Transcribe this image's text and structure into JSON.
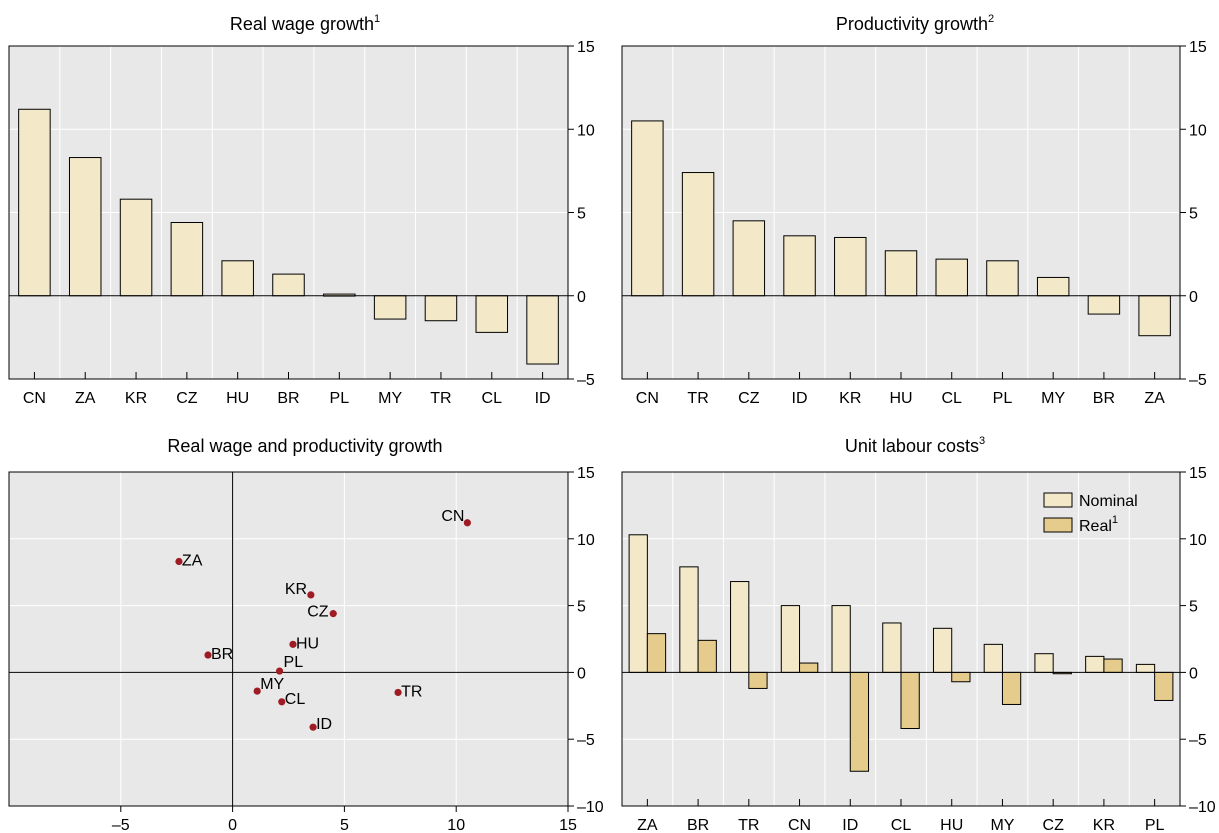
{
  "colors": {
    "panel_bg": "#e8e8e8",
    "grid": "#ffffff",
    "bar_light": "#f3e9c8",
    "bar_dark": "#e5cc8c",
    "bar_stroke": "#000000",
    "dot": "#a01c24"
  },
  "chart_data": [
    {
      "id": "p1",
      "type": "bar",
      "title": "Real wage growth",
      "title_sup": "1",
      "categories": [
        "CN",
        "ZA",
        "KR",
        "CZ",
        "HU",
        "BR",
        "PL",
        "MY",
        "TR",
        "CL",
        "ID"
      ],
      "values": [
        11.2,
        8.3,
        5.8,
        4.4,
        2.1,
        1.3,
        0.1,
        -1.4,
        -1.5,
        -2.2,
        -4.1
      ],
      "ylim": [
        -5,
        15
      ],
      "yticks": [
        "15",
        "10",
        "5",
        "0",
        "–5"
      ],
      "ytick_values": [
        15,
        10,
        5,
        0,
        -5
      ]
    },
    {
      "id": "p2",
      "type": "bar",
      "title": "Productivity growth",
      "title_sup": "2",
      "categories": [
        "CN",
        "TR",
        "CZ",
        "ID",
        "KR",
        "HU",
        "CL",
        "PL",
        "MY",
        "BR",
        "ZA"
      ],
      "values": [
        10.5,
        7.4,
        4.5,
        3.6,
        3.5,
        2.7,
        2.2,
        2.1,
        1.1,
        -1.1,
        -2.4
      ],
      "ylim": [
        -5,
        15
      ],
      "yticks": [
        "15",
        "10",
        "5",
        "0",
        "–5"
      ],
      "ytick_values": [
        15,
        10,
        5,
        0,
        -5
      ]
    },
    {
      "id": "p3",
      "type": "scatter",
      "title": "Real wage and productivity growth",
      "title_sup": "",
      "xlim": [
        -10,
        15
      ],
      "ylim": [
        -10,
        15
      ],
      "xticks": [
        "–5",
        "0",
        "5",
        "10",
        "15"
      ],
      "xtick_values": [
        -5,
        0,
        5,
        10,
        15
      ],
      "yticks": [
        "15",
        "10",
        "5",
        "0",
        "–5",
        "–10"
      ],
      "ytick_values": [
        15,
        10,
        5,
        0,
        -5,
        -10
      ],
      "points": [
        {
          "label": "CN",
          "x": 10.5,
          "y": 11.2
        },
        {
          "label": "ZA",
          "x": -2.4,
          "y": 8.3
        },
        {
          "label": "KR",
          "x": 3.5,
          "y": 5.8
        },
        {
          "label": "CZ",
          "x": 4.5,
          "y": 4.4
        },
        {
          "label": "HU",
          "x": 2.7,
          "y": 2.1
        },
        {
          "label": "BR",
          "x": -1.1,
          "y": 1.3
        },
        {
          "label": "PL",
          "x": 2.1,
          "y": 0.1
        },
        {
          "label": "MY",
          "x": 1.1,
          "y": -1.4
        },
        {
          "label": "CL",
          "x": 2.2,
          "y": -2.2
        },
        {
          "label": "TR",
          "x": 7.4,
          "y": -1.5
        },
        {
          "label": "ID",
          "x": 3.6,
          "y": -4.1
        }
      ]
    },
    {
      "id": "p4",
      "type": "bar",
      "title": "Unit labour costs",
      "title_sup": "3",
      "categories": [
        "ZA",
        "BR",
        "TR",
        "CN",
        "ID",
        "CL",
        "HU",
        "MY",
        "CZ",
        "KR",
        "PL"
      ],
      "series": [
        {
          "name": "Nominal",
          "name_sup": "",
          "values": [
            10.3,
            7.9,
            6.8,
            5.0,
            5.0,
            3.7,
            3.3,
            2.1,
            1.4,
            1.2,
            0.6
          ]
        },
        {
          "name": "Real",
          "name_sup": "1",
          "values": [
            2.9,
            2.4,
            -1.2,
            0.7,
            -7.4,
            -4.2,
            -0.7,
            -2.4,
            -0.1,
            1.0,
            -2.1
          ]
        }
      ],
      "ylim": [
        -10,
        15
      ],
      "yticks": [
        "15",
        "10",
        "5",
        "0",
        "–5",
        "–10"
      ],
      "ytick_values": [
        15,
        10,
        5,
        0,
        -5,
        -10
      ],
      "legend": "top-right"
    }
  ]
}
